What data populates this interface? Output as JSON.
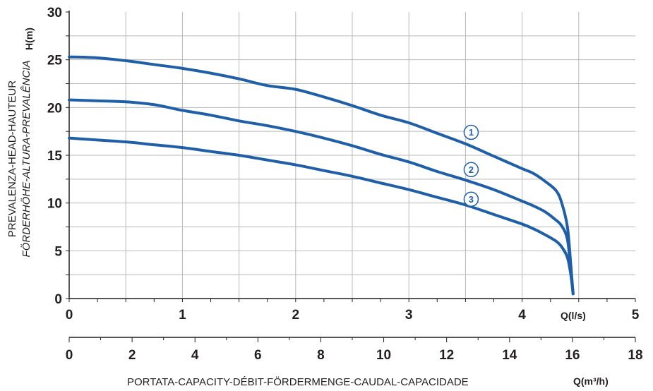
{
  "chart_data": {
    "type": "line",
    "xlabel": "Q(l/s)",
    "xlim": [
      0,
      5
    ],
    "x_ticks": [
      "0",
      "1",
      "2",
      "3",
      "4",
      "5"
    ],
    "ylabel": "H(m)",
    "ylim": [
      0,
      30
    ],
    "y_ticks": [
      "0",
      "5",
      "10",
      "15",
      "20",
      "25",
      "30"
    ],
    "x2label": "Q(m³/h)",
    "x2lim": [
      0,
      18
    ],
    "x2_ticks": [
      "0",
      "2",
      "4",
      "6",
      "8",
      "10",
      "12",
      "14",
      "16",
      "18"
    ],
    "grid": true,
    "color": "#1f5fa8",
    "yaxis_title_line1": "PREVALENZA-HEAD-HAUTEUR",
    "yaxis_title_line2": "FÖRDERHÖHE-ALTURA-PREVALÊNCIA",
    "xaxis_title": "PORTATA-CAPACITY-DÉBIT-FÖRDERMENGE-CAUDAL-CAPACIDADE",
    "series": [
      {
        "name": "1",
        "x": [
          0,
          0.25,
          0.5,
          0.75,
          1.0,
          1.25,
          1.5,
          1.75,
          2.0,
          2.25,
          2.5,
          2.75,
          3.0,
          3.25,
          3.5,
          3.75,
          4.0,
          4.1,
          4.2,
          4.3,
          4.35,
          4.4,
          4.43,
          4.45
        ],
        "y": [
          25.3,
          25.2,
          24.9,
          24.5,
          24.1,
          23.6,
          23.0,
          22.3,
          21.9,
          21.1,
          20.2,
          19.2,
          18.4,
          17.3,
          16.2,
          14.9,
          13.6,
          13.1,
          12.3,
          11.3,
          10.0,
          7.5,
          3.5,
          0.5
        ]
      },
      {
        "name": "2",
        "x": [
          0,
          0.25,
          0.5,
          0.75,
          1.0,
          1.25,
          1.5,
          1.75,
          2.0,
          2.25,
          2.5,
          2.75,
          3.0,
          3.25,
          3.5,
          3.75,
          4.0,
          4.1,
          4.2,
          4.3,
          4.35,
          4.4,
          4.43,
          4.45
        ],
        "y": [
          20.8,
          20.7,
          20.6,
          20.3,
          19.7,
          19.2,
          18.6,
          18.1,
          17.5,
          16.8,
          16.0,
          15.1,
          14.3,
          13.3,
          12.4,
          11.4,
          10.2,
          9.7,
          9.1,
          8.2,
          7.6,
          6.2,
          3.0,
          0.5
        ]
      },
      {
        "name": "3",
        "x": [
          0,
          0.25,
          0.5,
          0.75,
          1.0,
          1.25,
          1.5,
          1.75,
          2.0,
          2.25,
          2.5,
          2.75,
          3.0,
          3.25,
          3.5,
          3.75,
          4.0,
          4.1,
          4.2,
          4.3,
          4.35,
          4.4,
          4.43,
          4.45
        ],
        "y": [
          16.8,
          16.6,
          16.4,
          16.1,
          15.8,
          15.4,
          15.0,
          14.5,
          14.0,
          13.4,
          12.8,
          12.1,
          11.4,
          10.6,
          9.8,
          8.8,
          7.8,
          7.3,
          6.7,
          6.0,
          5.4,
          4.3,
          2.5,
          0.5
        ]
      }
    ]
  }
}
